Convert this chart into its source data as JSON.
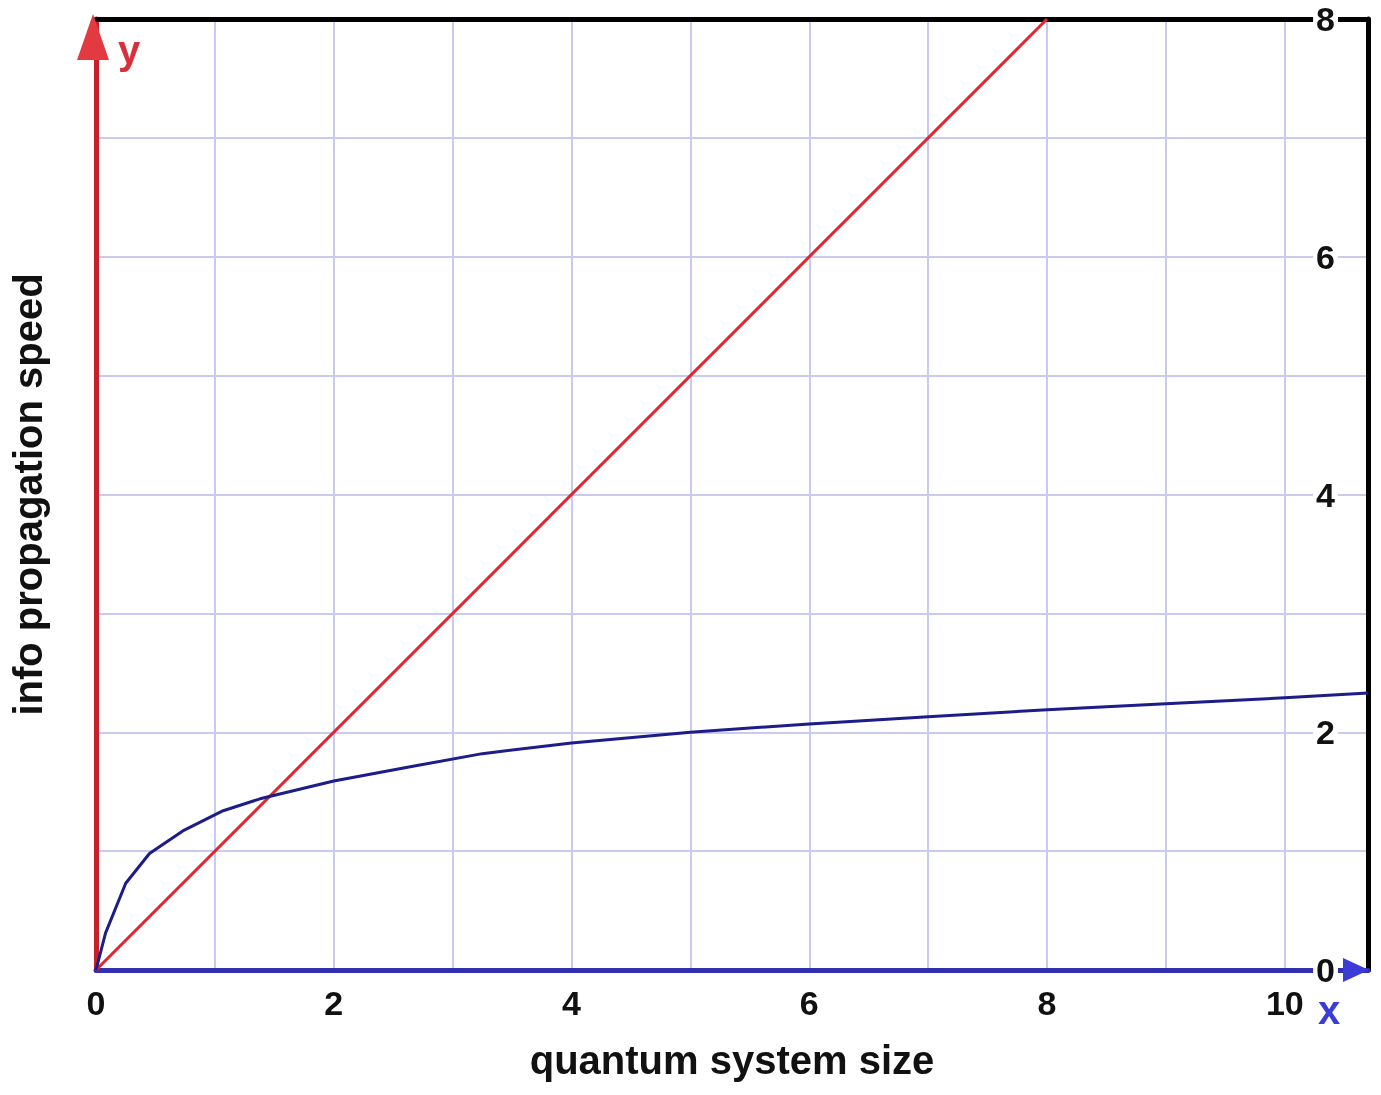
{
  "chart_data": {
    "type": "line",
    "xlabel": "quantum system size",
    "ylabel": "info propagation speed",
    "annotations": [
      "y",
      "x"
    ],
    "xlim": [
      0,
      10.7
    ],
    "ylim": [
      0,
      8
    ],
    "xticks": [
      0,
      {
        "value": 1,
        "label": null
      },
      2,
      {
        "value": 3,
        "label": null
      },
      4,
      {
        "value": 5,
        "label": null
      },
      6,
      {
        "value": 7,
        "label": null
      },
      8,
      {
        "value": 9,
        "label": null
      },
      10
    ],
    "yticks": [
      0,
      {
        "value": 1,
        "label": null
      },
      2,
      {
        "value": 3,
        "label": null
      },
      4,
      {
        "value": 5,
        "label": null
      },
      6,
      {
        "value": 7,
        "label": null
      },
      8
    ],
    "grid": true,
    "marker": "none",
    "line_style": "solid",
    "series": [
      {
        "color": "#e0262e",
        "x": [
          0,
          8
        ],
        "values": [
          0,
          8
        ]
      },
      {
        "color": "#1c1c8a",
        "x": [
          0,
          0.08,
          0.25,
          0.45,
          0.73,
          1.07,
          1.38,
          2.0,
          2.7,
          3.25,
          4.0,
          5.0,
          6.0,
          7.0,
          8.0,
          9.0,
          10.0,
          10.7
        ],
        "values": [
          0,
          0.31,
          0.73,
          0.98,
          1.17,
          1.34,
          1.44,
          1.59,
          1.72,
          1.82,
          1.91,
          2.0,
          2.07,
          2.13,
          2.19,
          2.24,
          2.29,
          2.33
        ]
      }
    ]
  }
}
